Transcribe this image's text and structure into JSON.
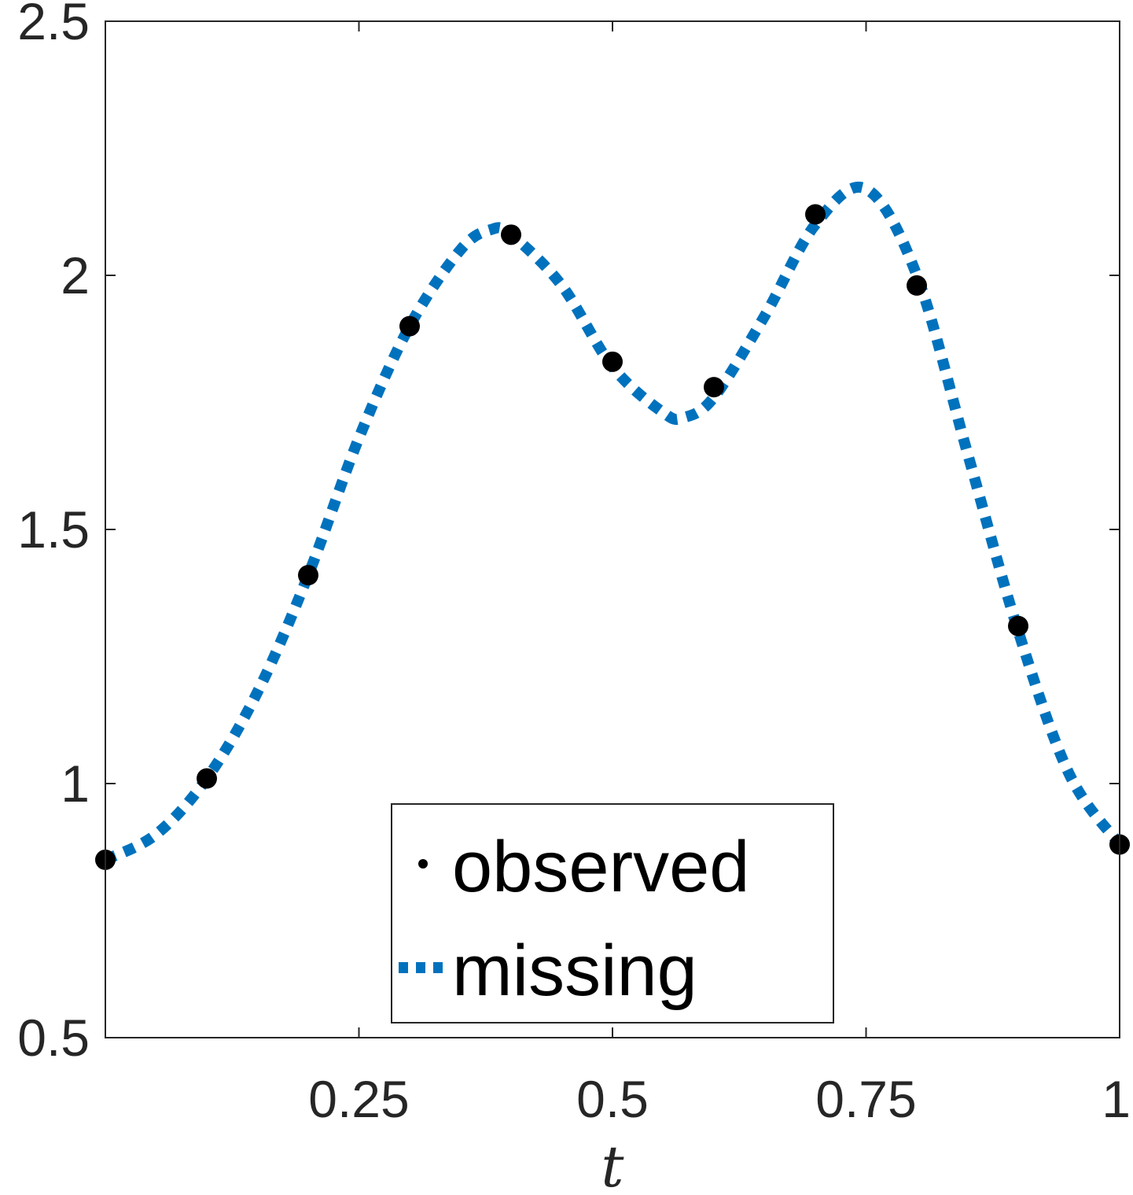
{
  "chart_data": {
    "type": "line",
    "title": "",
    "xlabel": "t",
    "ylabel": "",
    "xlim": [
      0,
      1
    ],
    "ylim": [
      0.5,
      2.5
    ],
    "xticks": [
      0.25,
      0.5,
      0.75,
      1
    ],
    "xtick_labels": [
      "0.25",
      "0.5",
      "0.75",
      "1"
    ],
    "yticks": [
      0.5,
      1,
      1.5,
      2,
      2.5
    ],
    "ytick_labels": [
      "0.5",
      "1",
      "1.5",
      "2",
      "2.5"
    ],
    "grid": false,
    "box": true,
    "legend": {
      "placement": "bottom-center",
      "entries": [
        "observed",
        "missing"
      ]
    },
    "series": [
      {
        "name": "observed",
        "style": "markers",
        "color": "#000000",
        "x": [
          0,
          0.1,
          0.2,
          0.3,
          0.4,
          0.5,
          0.6,
          0.7,
          0.8,
          0.9,
          1.0
        ],
        "y": [
          0.85,
          1.01,
          1.41,
          1.9,
          2.08,
          1.83,
          1.78,
          2.12,
          1.98,
          1.31,
          0.88
        ]
      },
      {
        "name": "missing",
        "style": "dotted-line",
        "color": "#0072BD",
        "x": [
          0,
          0.05,
          0.1,
          0.15,
          0.2,
          0.25,
          0.3,
          0.35,
          0.38,
          0.4,
          0.45,
          0.5,
          0.55,
          0.57,
          0.6,
          0.65,
          0.7,
          0.75,
          0.8,
          0.85,
          0.9,
          0.95,
          1.0
        ],
        "y": [
          0.85,
          0.9,
          1.01,
          1.18,
          1.41,
          1.68,
          1.9,
          2.05,
          2.09,
          2.08,
          1.98,
          1.82,
          1.73,
          1.72,
          1.76,
          1.92,
          2.1,
          2.17,
          2.0,
          1.65,
          1.3,
          1.02,
          0.88
        ]
      }
    ]
  }
}
